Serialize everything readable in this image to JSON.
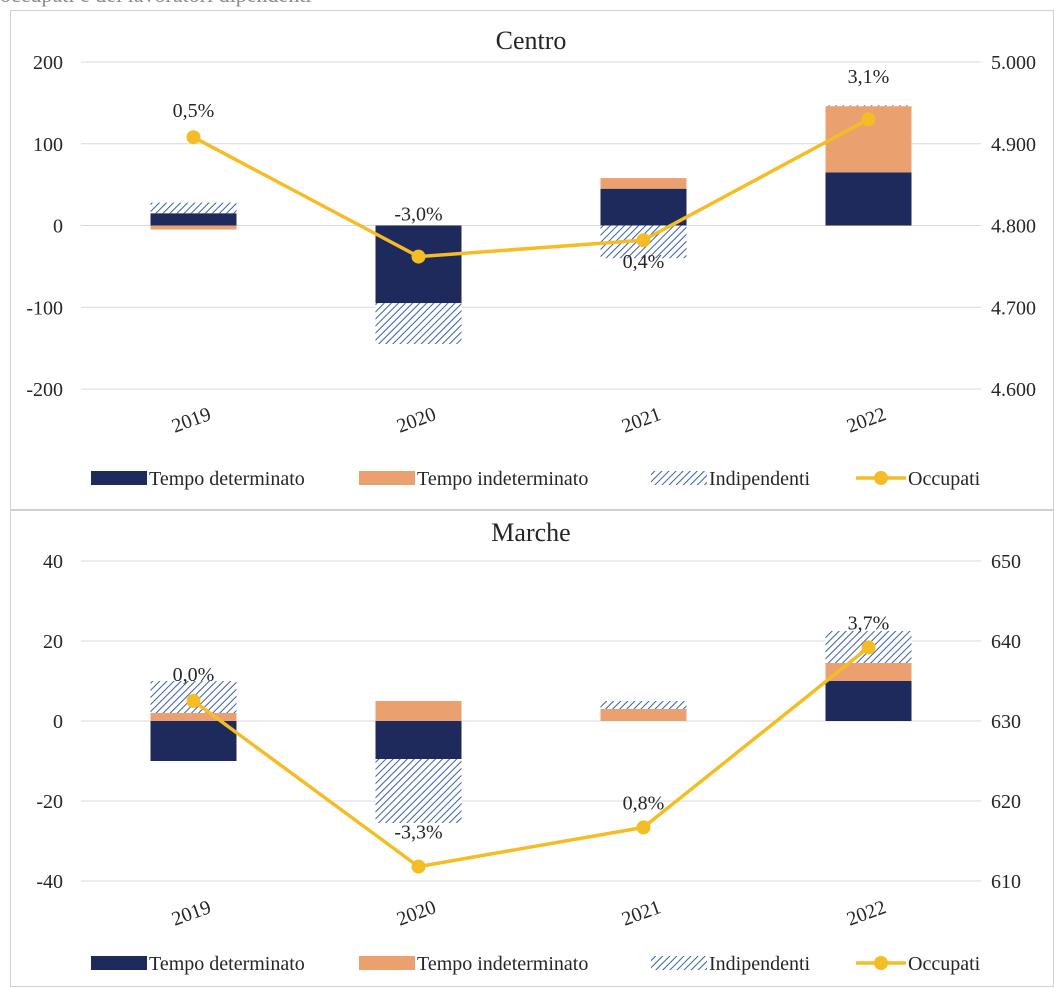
{
  "caption": "occupati e dei lavoratori dipendenti",
  "colors": {
    "tempo_determinato": "#1f2a5c",
    "tempo_indeterminato": "#eba070",
    "indipendenti": "#3a5fa8",
    "occupati": "#f4bd25",
    "gridline": "#d9d9d9"
  },
  "chart_data": [
    {
      "type": "bar",
      "title": "Centro",
      "categories": [
        "2019",
        "2020",
        "2021",
        "2022"
      ],
      "ylim": [
        -200,
        200
      ],
      "yticks": [
        -200,
        -100,
        0,
        100,
        200
      ],
      "ytick_labels": [
        "-200",
        "-100",
        "0",
        "100",
        "200"
      ],
      "y2lim": [
        4600,
        5000
      ],
      "y2ticks": [
        4600,
        4700,
        4800,
        4900,
        5000
      ],
      "y2tick_labels": [
        "4.600",
        "4.700",
        "4.800",
        "4.900",
        "5.000"
      ],
      "stacked": true,
      "series": [
        {
          "name": "Tempo determinato",
          "values": [
            15,
            -95,
            45,
            65
          ]
        },
        {
          "name": "Tempo indeterminato",
          "values": [
            -5,
            0,
            13,
            81
          ]
        },
        {
          "name": "Indipendenti",
          "values": [
            13,
            -50,
            -40,
            1
          ]
        },
        {
          "name": "Occupati",
          "type": "line",
          "axis": "right",
          "values": [
            4908,
            4762,
            4782,
            4930
          ]
        }
      ],
      "data_labels": [
        "0,5%",
        "-3,0%",
        "0,4%",
        "3,1%"
      ],
      "legend_position": "bottom",
      "grid": "horizontal"
    },
    {
      "type": "bar",
      "title": "Marche",
      "categories": [
        "2019",
        "2020",
        "2021",
        "2022"
      ],
      "ylim": [
        -40,
        40
      ],
      "yticks": [
        -40,
        -20,
        0,
        20,
        40
      ],
      "ytick_labels": [
        "-40",
        "-20",
        "0",
        "20",
        "40"
      ],
      "y2lim": [
        610,
        650
      ],
      "y2ticks": [
        610,
        620,
        630,
        640,
        650
      ],
      "y2tick_labels": [
        "610",
        "620",
        "630",
        "640",
        "650"
      ],
      "stacked": true,
      "series": [
        {
          "name": "Tempo determinato",
          "values": [
            -10,
            -9.5,
            0,
            10
          ]
        },
        {
          "name": "Tempo indeterminato",
          "values": [
            2,
            5,
            3,
            4.5
          ]
        },
        {
          "name": "Indipendenti",
          "values": [
            8,
            -16,
            2,
            8
          ]
        },
        {
          "name": "Occupati",
          "type": "line",
          "axis": "right",
          "values": [
            632.5,
            611.8,
            616.7,
            639.2
          ]
        }
      ],
      "data_labels": [
        "0,0%",
        "-3,3%",
        "0,8%",
        "3,7%"
      ],
      "legend_position": "bottom",
      "grid": "horizontal"
    }
  ]
}
